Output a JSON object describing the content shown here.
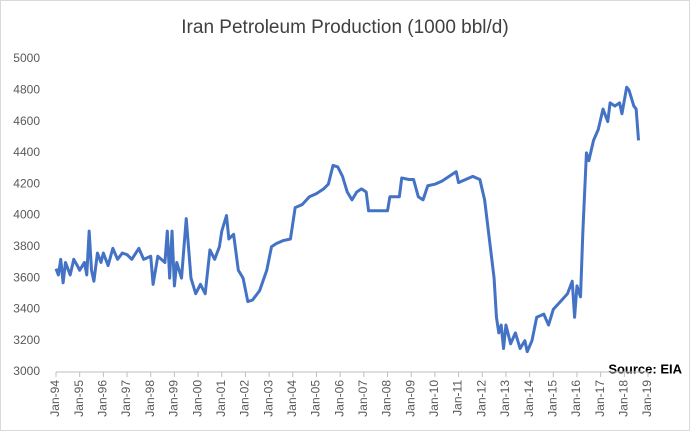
{
  "chart_data": {
    "type": "line",
    "title": "Iran Petroleum Production (1000 bbl/d)",
    "annotation": "Source: EIA",
    "x": [
      1994.0,
      1994.1,
      1994.2,
      1994.3,
      1994.4,
      1994.6,
      1994.75,
      1994.9,
      1995.0,
      1995.2,
      1995.3,
      1995.4,
      1995.5,
      1995.6,
      1995.75,
      1995.9,
      1996.0,
      1996.2,
      1996.4,
      1996.6,
      1996.8,
      1997.0,
      1997.2,
      1997.5,
      1997.7,
      1998.0,
      1998.1,
      1998.3,
      1998.6,
      1998.7,
      1998.8,
      1998.9,
      1999.0,
      1999.1,
      1999.3,
      1999.5,
      1999.7,
      1999.9,
      2000.1,
      2000.3,
      2000.5,
      2000.7,
      2000.9,
      2001.0,
      2001.2,
      2001.3,
      2001.5,
      2001.7,
      2001.9,
      2002.1,
      2002.3,
      2002.6,
      2002.9,
      2003.1,
      2003.3,
      2003.6,
      2003.9,
      2004.1,
      2004.4,
      2004.7,
      2005.0,
      2005.3,
      2005.5,
      2005.7,
      2005.9,
      2006.1,
      2006.3,
      2006.5,
      2006.7,
      2006.9,
      2007.1,
      2007.2,
      2007.6,
      2008.0,
      2008.1,
      2008.5,
      2008.6,
      2008.9,
      2009.1,
      2009.3,
      2009.5,
      2009.7,
      2010.0,
      2010.3,
      2010.6,
      2010.9,
      2011.0,
      2011.3,
      2011.6,
      2011.9,
      2012.1,
      2012.3,
      2012.5,
      2012.6,
      2012.7,
      2012.8,
      2012.9,
      2013.0,
      2013.2,
      2013.4,
      2013.6,
      2013.8,
      2013.9,
      2014.1,
      2014.3,
      2014.6,
      2014.8,
      2015.0,
      2015.3,
      2015.6,
      2015.8,
      2015.9,
      2016.0,
      2016.15,
      2016.25,
      2016.4,
      2016.5,
      2016.7,
      2016.9,
      2017.1,
      2017.3,
      2017.4,
      2017.6,
      2017.8,
      2017.9,
      2018.1,
      2018.2,
      2018.4,
      2018.5,
      2018.6
    ],
    "series": [
      {
        "color": "#4472c4",
        "values": [
          3660,
          3620,
          3720,
          3570,
          3700,
          3620,
          3720,
          3680,
          3650,
          3700,
          3620,
          3900,
          3650,
          3580,
          3760,
          3700,
          3760,
          3680,
          3790,
          3720,
          3760,
          3750,
          3720,
          3790,
          3720,
          3740,
          3560,
          3740,
          3700,
          3900,
          3600,
          3900,
          3550,
          3700,
          3600,
          3980,
          3600,
          3500,
          3560,
          3500,
          3780,
          3720,
          3800,
          3900,
          4000,
          3850,
          3880,
          3650,
          3600,
          3450,
          3460,
          3520,
          3650,
          3800,
          3820,
          3840,
          3850,
          4050,
          4070,
          4120,
          4140,
          4170,
          4200,
          4320,
          4310,
          4250,
          4150,
          4100,
          4150,
          4170,
          4150,
          4030,
          4030,
          4030,
          4120,
          4120,
          4240,
          4230,
          4230,
          4120,
          4100,
          4190,
          4200,
          4220,
          4250,
          4280,
          4210,
          4230,
          4250,
          4230,
          4100,
          3850,
          3600,
          3350,
          3250,
          3300,
          3150,
          3300,
          3180,
          3250,
          3150,
          3200,
          3130,
          3200,
          3350,
          3370,
          3300,
          3400,
          3450,
          3500,
          3580,
          3350,
          3550,
          3480,
          3900,
          4400,
          4350,
          4480,
          4550,
          4680,
          4600,
          4720,
          4700,
          4720,
          4650,
          4820,
          4800,
          4700,
          4680,
          4480
        ]
      }
    ],
    "xlim": [
      1994,
      2019
    ],
    "xticks": [
      {
        "value": 1994,
        "label": "Jan-94"
      },
      {
        "value": 1995,
        "label": "Jan-95"
      },
      {
        "value": 1996,
        "label": "Jan-96"
      },
      {
        "value": 1997,
        "label": "Jan-97"
      },
      {
        "value": 1998,
        "label": "Jan-98"
      },
      {
        "value": 1999,
        "label": "Jan-99"
      },
      {
        "value": 2000,
        "label": "Jan-00"
      },
      {
        "value": 2001,
        "label": "Jan-01"
      },
      {
        "value": 2002,
        "label": "Jan-02"
      },
      {
        "value": 2003,
        "label": "Jan-03"
      },
      {
        "value": 2004,
        "label": "Jan-04"
      },
      {
        "value": 2005,
        "label": "Jan-05"
      },
      {
        "value": 2006,
        "label": "Jan-06"
      },
      {
        "value": 2007,
        "label": "Jan-07"
      },
      {
        "value": 2008,
        "label": "Jan-08"
      },
      {
        "value": 2009,
        "label": "Jan-09"
      },
      {
        "value": 2010,
        "label": "Jan-10"
      },
      {
        "value": 2011,
        "label": "Jan-11"
      },
      {
        "value": 2012,
        "label": "Jan-12"
      },
      {
        "value": 2013,
        "label": "Jan-13"
      },
      {
        "value": 2014,
        "label": "Jan-14"
      },
      {
        "value": 2015,
        "label": "Jan-15"
      },
      {
        "value": 2016,
        "label": "Jan-16"
      },
      {
        "value": 2017,
        "label": "Jan-17"
      },
      {
        "value": 2018,
        "label": "Jan-18"
      },
      {
        "value": 2019,
        "label": "Jan-19"
      }
    ],
    "ylim": [
      3000,
      5000
    ],
    "yticks": [
      3000,
      3200,
      3400,
      3600,
      3800,
      4000,
      4200,
      4400,
      4600,
      4800,
      5000
    ]
  }
}
